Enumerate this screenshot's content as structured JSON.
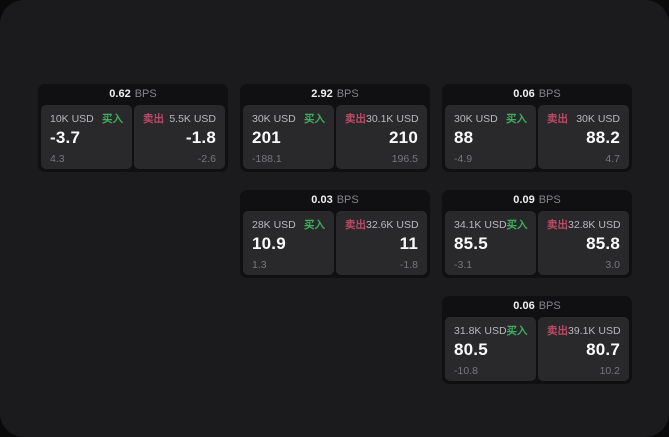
{
  "labels": {
    "bps": "BPS",
    "buy": "买入",
    "sell": "卖出"
  },
  "colors": {
    "background": "#0a0a0b",
    "panel": "#1b1b1d",
    "card": "#101012",
    "tile": "#29292c",
    "buy_accent": "#3fae5e",
    "sell_accent": "#bc4a66",
    "value_text": "#fafafa",
    "muted_text": "#77777c"
  },
  "cards": [
    {
      "row": 1,
      "col": 1,
      "bps": "0.62",
      "buy": {
        "amount": "10K USD",
        "price": "-3.7",
        "delta": "4.3"
      },
      "sell": {
        "amount": "5.5K USD",
        "price": "-1.8",
        "delta": "-2.6"
      }
    },
    {
      "row": 1,
      "col": 2,
      "bps": "2.92",
      "buy": {
        "amount": "30K USD",
        "price": "201",
        "delta": "-188.1"
      },
      "sell": {
        "amount": "30.1K USD",
        "price": "210",
        "delta": "196.5"
      }
    },
    {
      "row": 1,
      "col": 3,
      "bps": "0.06",
      "buy": {
        "amount": "30K USD",
        "price": "88",
        "delta": "-4.9"
      },
      "sell": {
        "amount": "30K USD",
        "price": "88.2",
        "delta": "4.7"
      }
    },
    {
      "row": 2,
      "col": 2,
      "bps": "0.03",
      "buy": {
        "amount": "28K USD",
        "price": "10.9",
        "delta": "1.3"
      },
      "sell": {
        "amount": "32.6K USD",
        "price": "11",
        "delta": "-1.8"
      }
    },
    {
      "row": 2,
      "col": 3,
      "bps": "0.09",
      "buy": {
        "amount": "34.1K USD",
        "price": "85.5",
        "delta": "-3.1"
      },
      "sell": {
        "amount": "32.8K USD",
        "price": "85.8",
        "delta": "3.0"
      }
    },
    {
      "row": 3,
      "col": 3,
      "bps": "0.06",
      "buy": {
        "amount": "31.8K USD",
        "price": "80.5",
        "delta": "-10.8"
      },
      "sell": {
        "amount": "39.1K USD",
        "price": "80.7",
        "delta": "10.2"
      }
    }
  ]
}
